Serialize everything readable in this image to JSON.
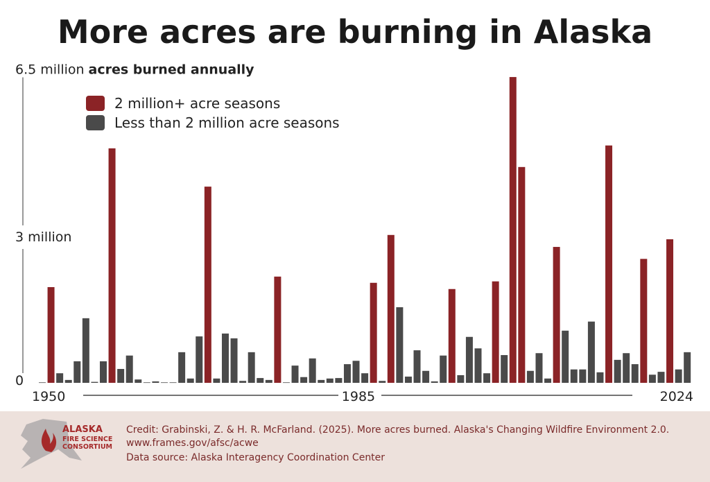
{
  "chart_data": {
    "type": "bar",
    "title": "More acres are burning in Alaska",
    "y_label": "acres burned annually",
    "categories": [
      "1950",
      null,
      null,
      null,
      null,
      null,
      null,
      null,
      null,
      null,
      null,
      null,
      null,
      null,
      null,
      null,
      null,
      null,
      null,
      null,
      null,
      null,
      null,
      null,
      null,
      null,
      null,
      null,
      null,
      null,
      null,
      null,
      null,
      null,
      null,
      "1985",
      null,
      null,
      null,
      null,
      null,
      null,
      null,
      null,
      null,
      null,
      null,
      null,
      null,
      null,
      null,
      null,
      null,
      null,
      null,
      null,
      null,
      null,
      null,
      null,
      null,
      null,
      null,
      null,
      null,
      null,
      null,
      null,
      null,
      null,
      null,
      null,
      null,
      null,
      "2024"
    ],
    "series": [
      {
        "name": "2 million+ acre seasons",
        "color": "#8b2326",
        "values": [
          null,
          2.0,
          null,
          null,
          null,
          null,
          null,
          null,
          4.9,
          null,
          null,
          null,
          null,
          null,
          null,
          null,
          null,
          null,
          null,
          4.1,
          null,
          null,
          null,
          null,
          null,
          null,
          null,
          2.22,
          null,
          null,
          null,
          null,
          null,
          null,
          null,
          null,
          null,
          null,
          2.09,
          null,
          3.09,
          null,
          null,
          null,
          null,
          null,
          null,
          1.96,
          null,
          null,
          null,
          null,
          2.12,
          null,
          6.39,
          4.51,
          null,
          null,
          null,
          2.84,
          null,
          null,
          null,
          null,
          null,
          4.96,
          null,
          null,
          null,
          2.59,
          null,
          null,
          3.0,
          null,
          null
        ]
      },
      {
        "name": "Less than 2 million acre seasons",
        "color": "#4a4a4a",
        "values": [
          0.01,
          null,
          0.2,
          0.06,
          0.45,
          1.35,
          0.02,
          0.45,
          null,
          0.29,
          0.57,
          0.07,
          0.01,
          0.03,
          0.01,
          0.01,
          0.64,
          0.09,
          0.97,
          null,
          0.09,
          1.03,
          0.93,
          0.04,
          0.64,
          0.1,
          0.06,
          null,
          0.01,
          0.36,
          0.12,
          0.51,
          0.06,
          0.09,
          0.1,
          0.39,
          0.46,
          0.2,
          null,
          0.04,
          null,
          1.58,
          0.13,
          0.68,
          0.25,
          0.03,
          0.57,
          null,
          0.16,
          0.96,
          0.72,
          0.2,
          null,
          0.58,
          null,
          null,
          0.25,
          0.62,
          0.09,
          null,
          1.09,
          0.28,
          0.28,
          1.28,
          0.22,
          null,
          0.48,
          0.62,
          0.39,
          null,
          0.17,
          0.23,
          null,
          0.28,
          0.64
        ]
      }
    ],
    "ylim": [
      0,
      6.5
    ],
    "yticks": [
      0,
      {
        "value": 3,
        "label": "3 million"
      },
      {
        "value": 6.5,
        "label": "6.5 million"
      }
    ],
    "grid": false,
    "legend": "top-left"
  },
  "footer": {
    "logo": [
      "ALASKA",
      "FIRE SCIENCE",
      "CONSORTIUM"
    ],
    "credit": "Credit:  Grabinski, Z. & H. R. McFarland. (2025). More acres burned. Alaska's Changing Wildfire Environment 2.0.",
    "url": "www.frames.gov/afsc/acwe",
    "source": "Data source: Alaska Interagency Coordination Center"
  }
}
